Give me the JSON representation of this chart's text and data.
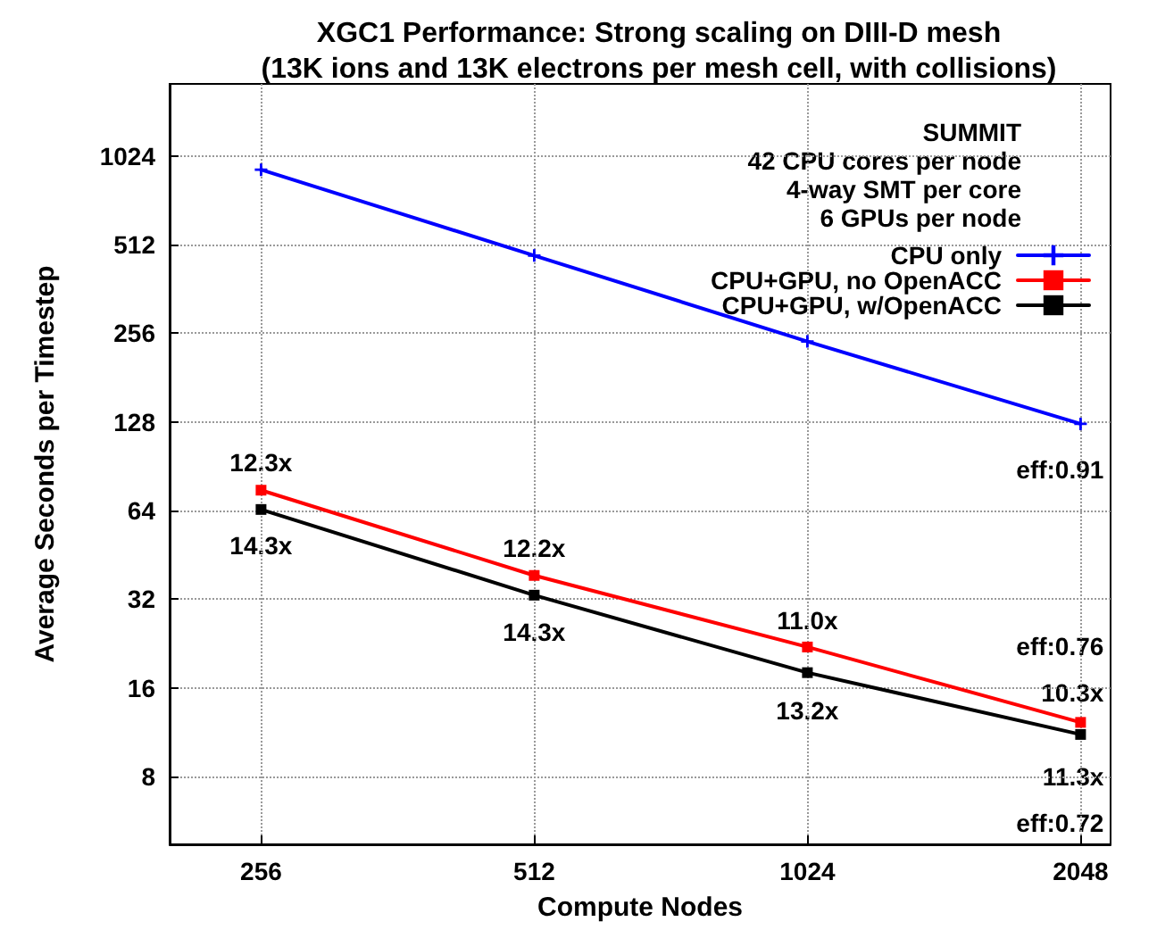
{
  "chart_data": {
    "type": "line",
    "title": "XGC1 Performance: Strong scaling on DIII-D mesh\n(13K ions and 13K electrons per mesh cell, with collisions)",
    "xlabel": "Compute Nodes",
    "ylabel": "Average Seconds per Timestep",
    "x": [
      256,
      512,
      1024,
      2048
    ],
    "series": [
      {
        "name": "CPU only",
        "color": "#0000ff",
        "marker": "cross",
        "values": [
          920,
          470,
          240,
          126
        ]
      },
      {
        "name": "CPU+GPU, no OpenACC",
        "color": "#ff0000",
        "marker": "square",
        "values": [
          75,
          38.5,
          22,
          12.2
        ]
      },
      {
        "name": "CPU+GPU, w/OpenACC",
        "color": "#000000",
        "marker": "square",
        "values": [
          64.5,
          33,
          18,
          11.1
        ]
      }
    ],
    "annotations": [
      "SUMMIT",
      "42 CPU cores per node",
      "4-way SMT per core",
      "6 GPUs per node",
      {
        "text": "12.3x",
        "x": 256,
        "y": 75
      },
      {
        "text": "12.2x",
        "x": 512,
        "y": 38.5
      },
      {
        "text": "11.0x",
        "x": 1024,
        "y": 22
      },
      {
        "text": "10.3x",
        "x": 2048,
        "y": 12.2
      },
      {
        "text": "14.3x",
        "x": 256,
        "y": 64.5
      },
      {
        "text": "14.3x",
        "x": 512,
        "y": 33
      },
      {
        "text": "13.2x",
        "x": 1024,
        "y": 18
      },
      {
        "text": "11.3x",
        "x": 2048,
        "y": 11.1
      },
      {
        "text": "eff:0.91",
        "x": 2048,
        "y": 126
      },
      {
        "text": "eff:0.76",
        "x": 2048,
        "y": 12.2
      },
      {
        "text": "eff:0.72",
        "x": 2048,
        "y": 11.1
      }
    ],
    "log": "xy",
    "xlim": [
      203,
      2210
    ],
    "xticks": [
      256,
      512,
      1024,
      2048
    ],
    "ylim": [
      4.7,
      1800
    ],
    "yticks": [
      8,
      16,
      32,
      64,
      128,
      256,
      512,
      1024
    ],
    "grid": true,
    "legend": "top right",
    "line_style": "solid"
  }
}
